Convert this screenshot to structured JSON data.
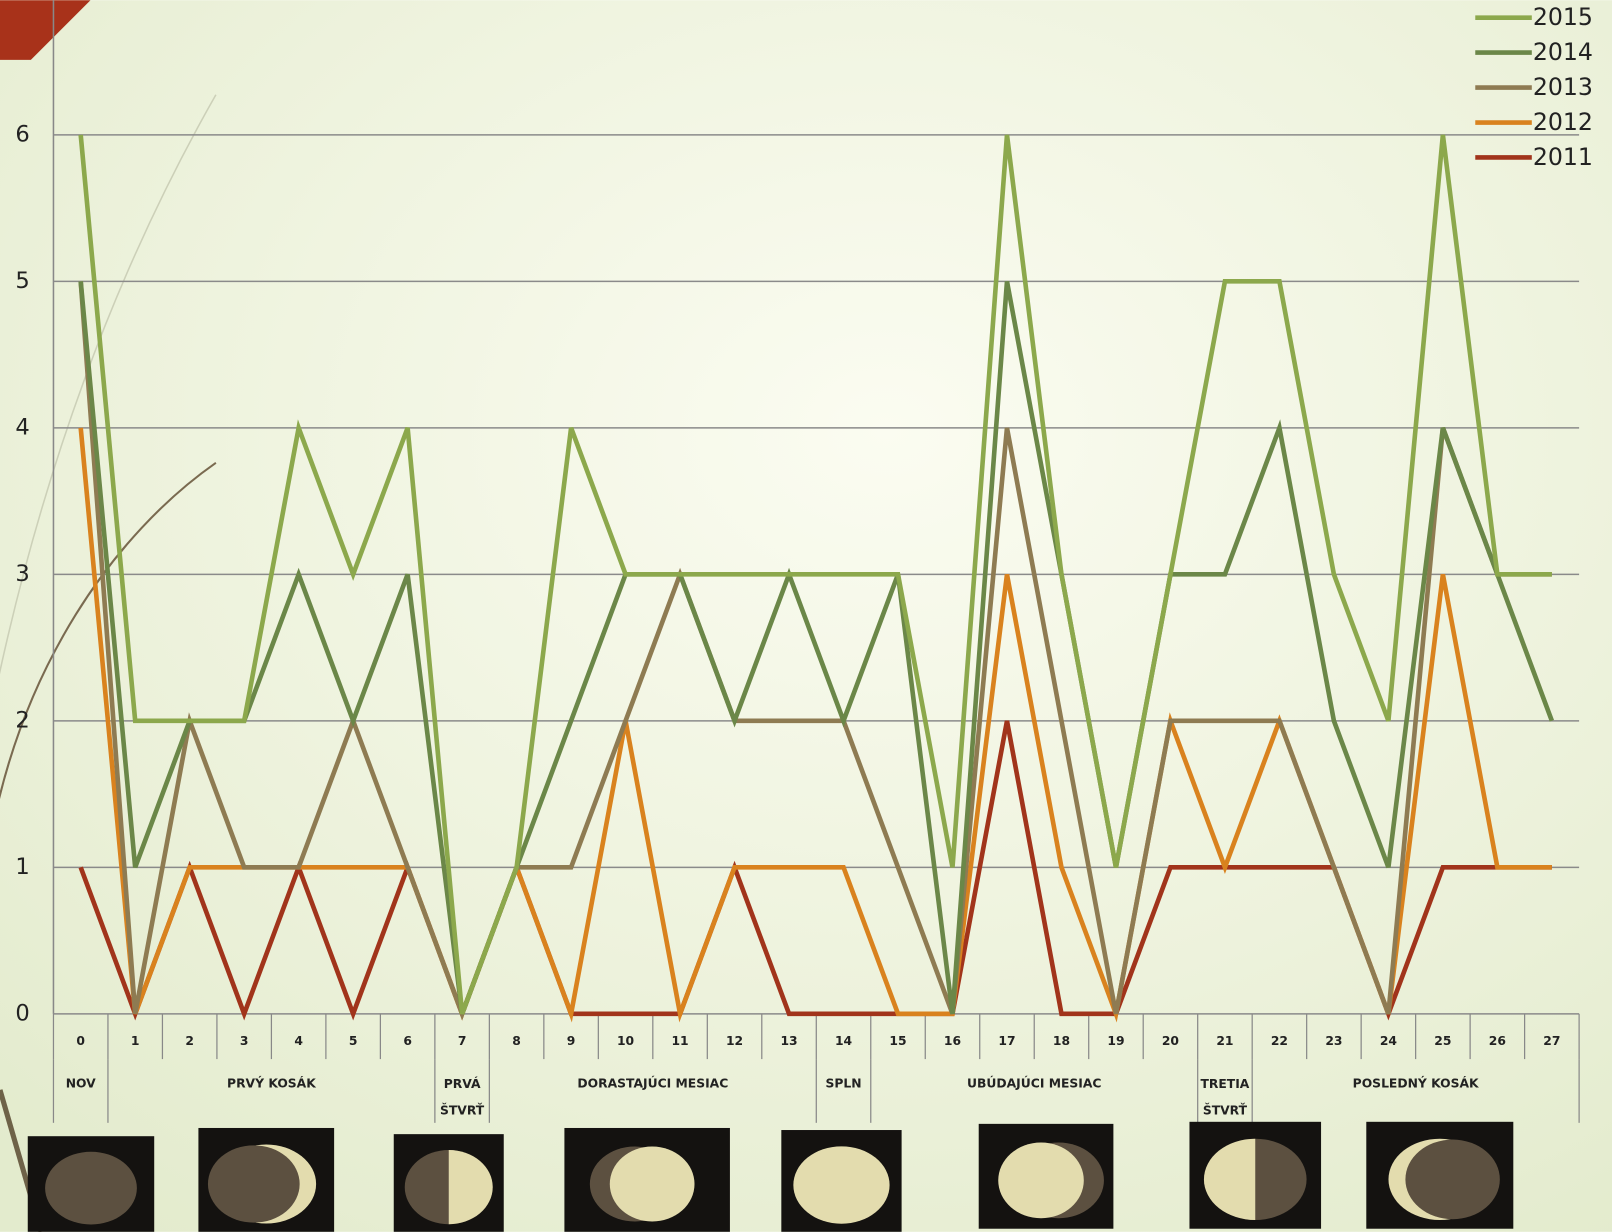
{
  "chart_data": {
    "type": "line",
    "categories": [
      "0",
      "1",
      "2",
      "3",
      "4",
      "5",
      "6",
      "7",
      "8",
      "9",
      "10",
      "11",
      "12",
      "13",
      "14",
      "15",
      "16",
      "17",
      "18",
      "19",
      "20",
      "21",
      "22",
      "23",
      "24",
      "25",
      "26",
      "27"
    ],
    "series": [
      {
        "name": "2015",
        "color": "#8ca84c",
        "values": [
          6,
          2,
          2,
          2,
          4,
          3,
          4,
          0,
          1,
          4,
          3,
          3,
          3,
          3,
          3,
          3,
          1,
          6,
          3,
          1,
          3,
          5,
          5,
          3,
          2,
          6,
          3,
          3
        ]
      },
      {
        "name": "2014",
        "color": "#6b8748",
        "values": [
          5,
          1,
          2,
          2,
          3,
          2,
          3,
          0,
          1,
          2,
          3,
          3,
          2,
          3,
          2,
          3,
          0,
          5,
          3,
          1,
          3,
          3,
          4,
          2,
          1,
          4,
          3,
          2
        ]
      },
      {
        "name": "2013",
        "color": "#8e7b52",
        "values": [
          5,
          0,
          2,
          1,
          1,
          2,
          1,
          0,
          1,
          1,
          2,
          3,
          2,
          2,
          2,
          1,
          0,
          4,
          2,
          0,
          2,
          2,
          2,
          1,
          0,
          4,
          3,
          3
        ]
      },
      {
        "name": "2012",
        "color": "#d9821e",
        "values": [
          4,
          0,
          1,
          1,
          1,
          1,
          1,
          0,
          1,
          0,
          2,
          0,
          1,
          1,
          1,
          0,
          0,
          3,
          1,
          0,
          2,
          1,
          2,
          1,
          0,
          3,
          1,
          1
        ]
      },
      {
        "name": "2011",
        "color": "#a1341b",
        "values": [
          1,
          0,
          1,
          0,
          1,
          0,
          1,
          0,
          1,
          0,
          0,
          0,
          1,
          0,
          0,
          0,
          0,
          2,
          0,
          0,
          1,
          1,
          1,
          1,
          0,
          1,
          1,
          1
        ]
      }
    ],
    "ylim": [
      0,
      6
    ],
    "yticks": [
      0,
      1,
      2,
      3,
      4,
      5,
      6
    ],
    "grid": true,
    "legend": "top-right",
    "phases": [
      "NOV",
      "PRVÝ KOSÁK",
      "PRVÁ\nŠTVRŤ",
      "DORASTAJÚCI MESIAC",
      "SPLN",
      "UBÚDAJÚCI MESIAC",
      "TRETIA\nŠTVRŤ",
      "POSLEDNÝ KOSÁK"
    ]
  }
}
